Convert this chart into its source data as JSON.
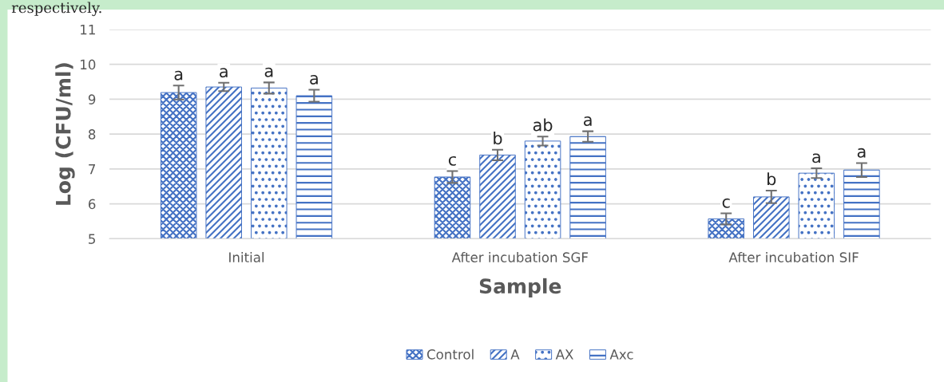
{
  "chart_data": {
    "type": "bar",
    "xlabel": "Sample",
    "ylabel": "Log (CFU/ml)",
    "categories": [
      "Initial",
      "After incubation SGF",
      "After incubation SIF"
    ],
    "series": [
      {
        "name": "Control",
        "color": "#4472c4",
        "values": [
          9.19,
          6.77,
          5.57
        ],
        "errors": [
          0.2,
          0.17,
          0.16
        ],
        "value_labels": [
          "a",
          "c",
          "c"
        ]
      },
      {
        "name": "A",
        "color": "#4472c4",
        "values": [
          9.35,
          7.4,
          6.2
        ],
        "errors": [
          0.12,
          0.15,
          0.18
        ],
        "value_labels": [
          "a",
          "b",
          "b"
        ]
      },
      {
        "name": "AX",
        "color": "#4472c4",
        "values": [
          9.32,
          7.8,
          6.88
        ],
        "errors": [
          0.16,
          0.13,
          0.14
        ],
        "value_labels": [
          "a",
          "ab",
          "a"
        ]
      },
      {
        "name": "Axc",
        "color": "#4472c4",
        "values": [
          9.1,
          7.93,
          6.97
        ],
        "errors": [
          0.17,
          0.15,
          0.2
        ],
        "value_labels": [
          "a",
          "a",
          "a"
        ]
      }
    ],
    "ylim": [
      5,
      11
    ],
    "yticks": [
      5,
      6,
      7,
      8,
      9,
      10,
      11
    ],
    "grid": "y",
    "legend": "bottom",
    "annotations": [
      "respectively."
    ]
  }
}
